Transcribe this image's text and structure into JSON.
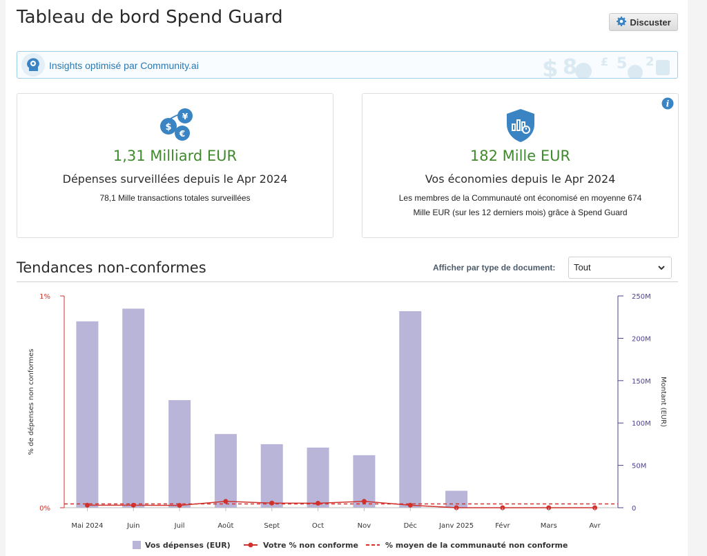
{
  "header": {
    "title": "Tableau de bord Spend Guard",
    "chat_label": "Discuster"
  },
  "insights": {
    "label": "Insights optimisé par Community.ai"
  },
  "cards": [
    {
      "value": "1,31 Milliard EUR",
      "caption": "Dépenses surveillées depuis le Apr 2024",
      "detail": "78,1 Mille transactions totales surveillées"
    },
    {
      "value": "182 Mille EUR",
      "caption": "Vos économies depuis le Apr 2024",
      "detail_line1": "Les membres de la Communauté ont économisé en moyenne 674",
      "detail_line2": "Mille EUR (sur les 12 derniers mois) grâce à Spend Guard"
    }
  ],
  "trends": {
    "title": "Tendances non-conformes",
    "filter_label": "Afficher par type de document:",
    "filter_value": "Tout"
  },
  "colors": {
    "bar": "#b8b5d9",
    "line": "#d1312b",
    "left_axis": "#d1312b",
    "right_axis": "#4b3f8f",
    "value_green": "#3f8a2d",
    "icon_blue": "#3a84c4"
  },
  "icons": {
    "chat": "gear-chat-icon",
    "insights": "brain-gear-icon",
    "card1": "currency-coins-icon",
    "card2": "shield-chart-icon",
    "info": "info-icon",
    "filter": "chevron-down-icon"
  },
  "chart_data": {
    "type": "bar",
    "categories": [
      "Mai 2024",
      "Juin",
      "Juil",
      "Août",
      "Sept",
      "Oct",
      "Nov",
      "Déc",
      "Janv 2025",
      "Févr",
      "Mars",
      "Avr"
    ],
    "series": [
      {
        "name": "Vos dépenses (EUR)",
        "type": "bar",
        "axis": "right",
        "values": [
          220,
          235,
          127,
          87,
          75,
          71,
          62,
          232,
          20,
          0,
          0,
          0
        ]
      },
      {
        "name": "Votre % non conforme",
        "type": "line",
        "axis": "left",
        "values": [
          0.012,
          0.012,
          0.011,
          0.03,
          0.022,
          0.021,
          0.03,
          0.012,
          0,
          0,
          0,
          0
        ]
      },
      {
        "name": "% moyen de la communauté non conforme",
        "type": "dashed-line",
        "axis": "left",
        "values": [
          0.018,
          0.018,
          0.018,
          0.018,
          0.018,
          0.018,
          0.018,
          0.018,
          0.018,
          0.018,
          0.018,
          0.018
        ]
      }
    ],
    "left_axis": {
      "label": "% de dépenses non conformes",
      "ylim": [
        0,
        1
      ],
      "ticks": [
        "0%",
        "1%"
      ]
    },
    "right_axis": {
      "label": "Montant (EUR)",
      "unit": "M",
      "ylim": [
        0,
        250
      ],
      "ticks": [
        "0",
        "50M",
        "100M",
        "150M",
        "200M",
        "250M"
      ]
    },
    "legend_position": "bottom"
  }
}
